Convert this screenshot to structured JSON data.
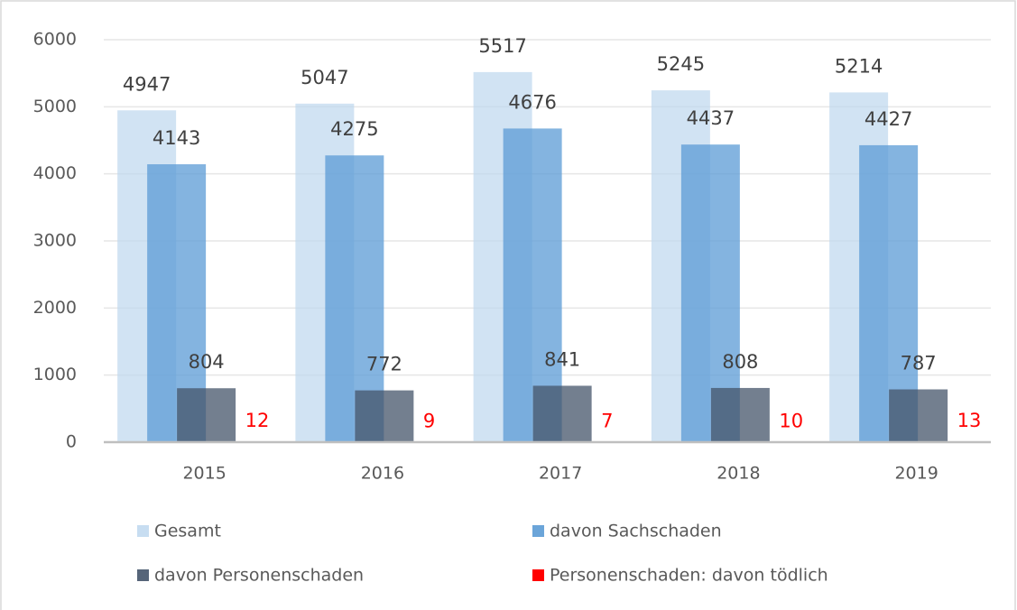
{
  "chart_data": {
    "type": "bar",
    "categories": [
      "2015",
      "2016",
      "2017",
      "2018",
      "2019"
    ],
    "series": [
      {
        "name": "Gesamt",
        "color": "#bdd7ee",
        "values": [
          4947,
          5047,
          5517,
          5245,
          5214
        ]
      },
      {
        "name": "davon Sachschaden",
        "color": "#5b9bd5",
        "values": [
          4143,
          4275,
          4676,
          4437,
          4427
        ]
      },
      {
        "name": "davon Personenschaden",
        "color": "#44546a",
        "values": [
          804,
          772,
          841,
          808,
          787
        ]
      },
      {
        "name": "Personenschaden: davon tödlich",
        "color": "#ff0000",
        "values": [
          12,
          9,
          7,
          10,
          13
        ]
      }
    ],
    "ylim": [
      0,
      6000
    ],
    "yticks": [
      0,
      1000,
      2000,
      3000,
      4000,
      5000,
      6000
    ],
    "grid": true
  }
}
